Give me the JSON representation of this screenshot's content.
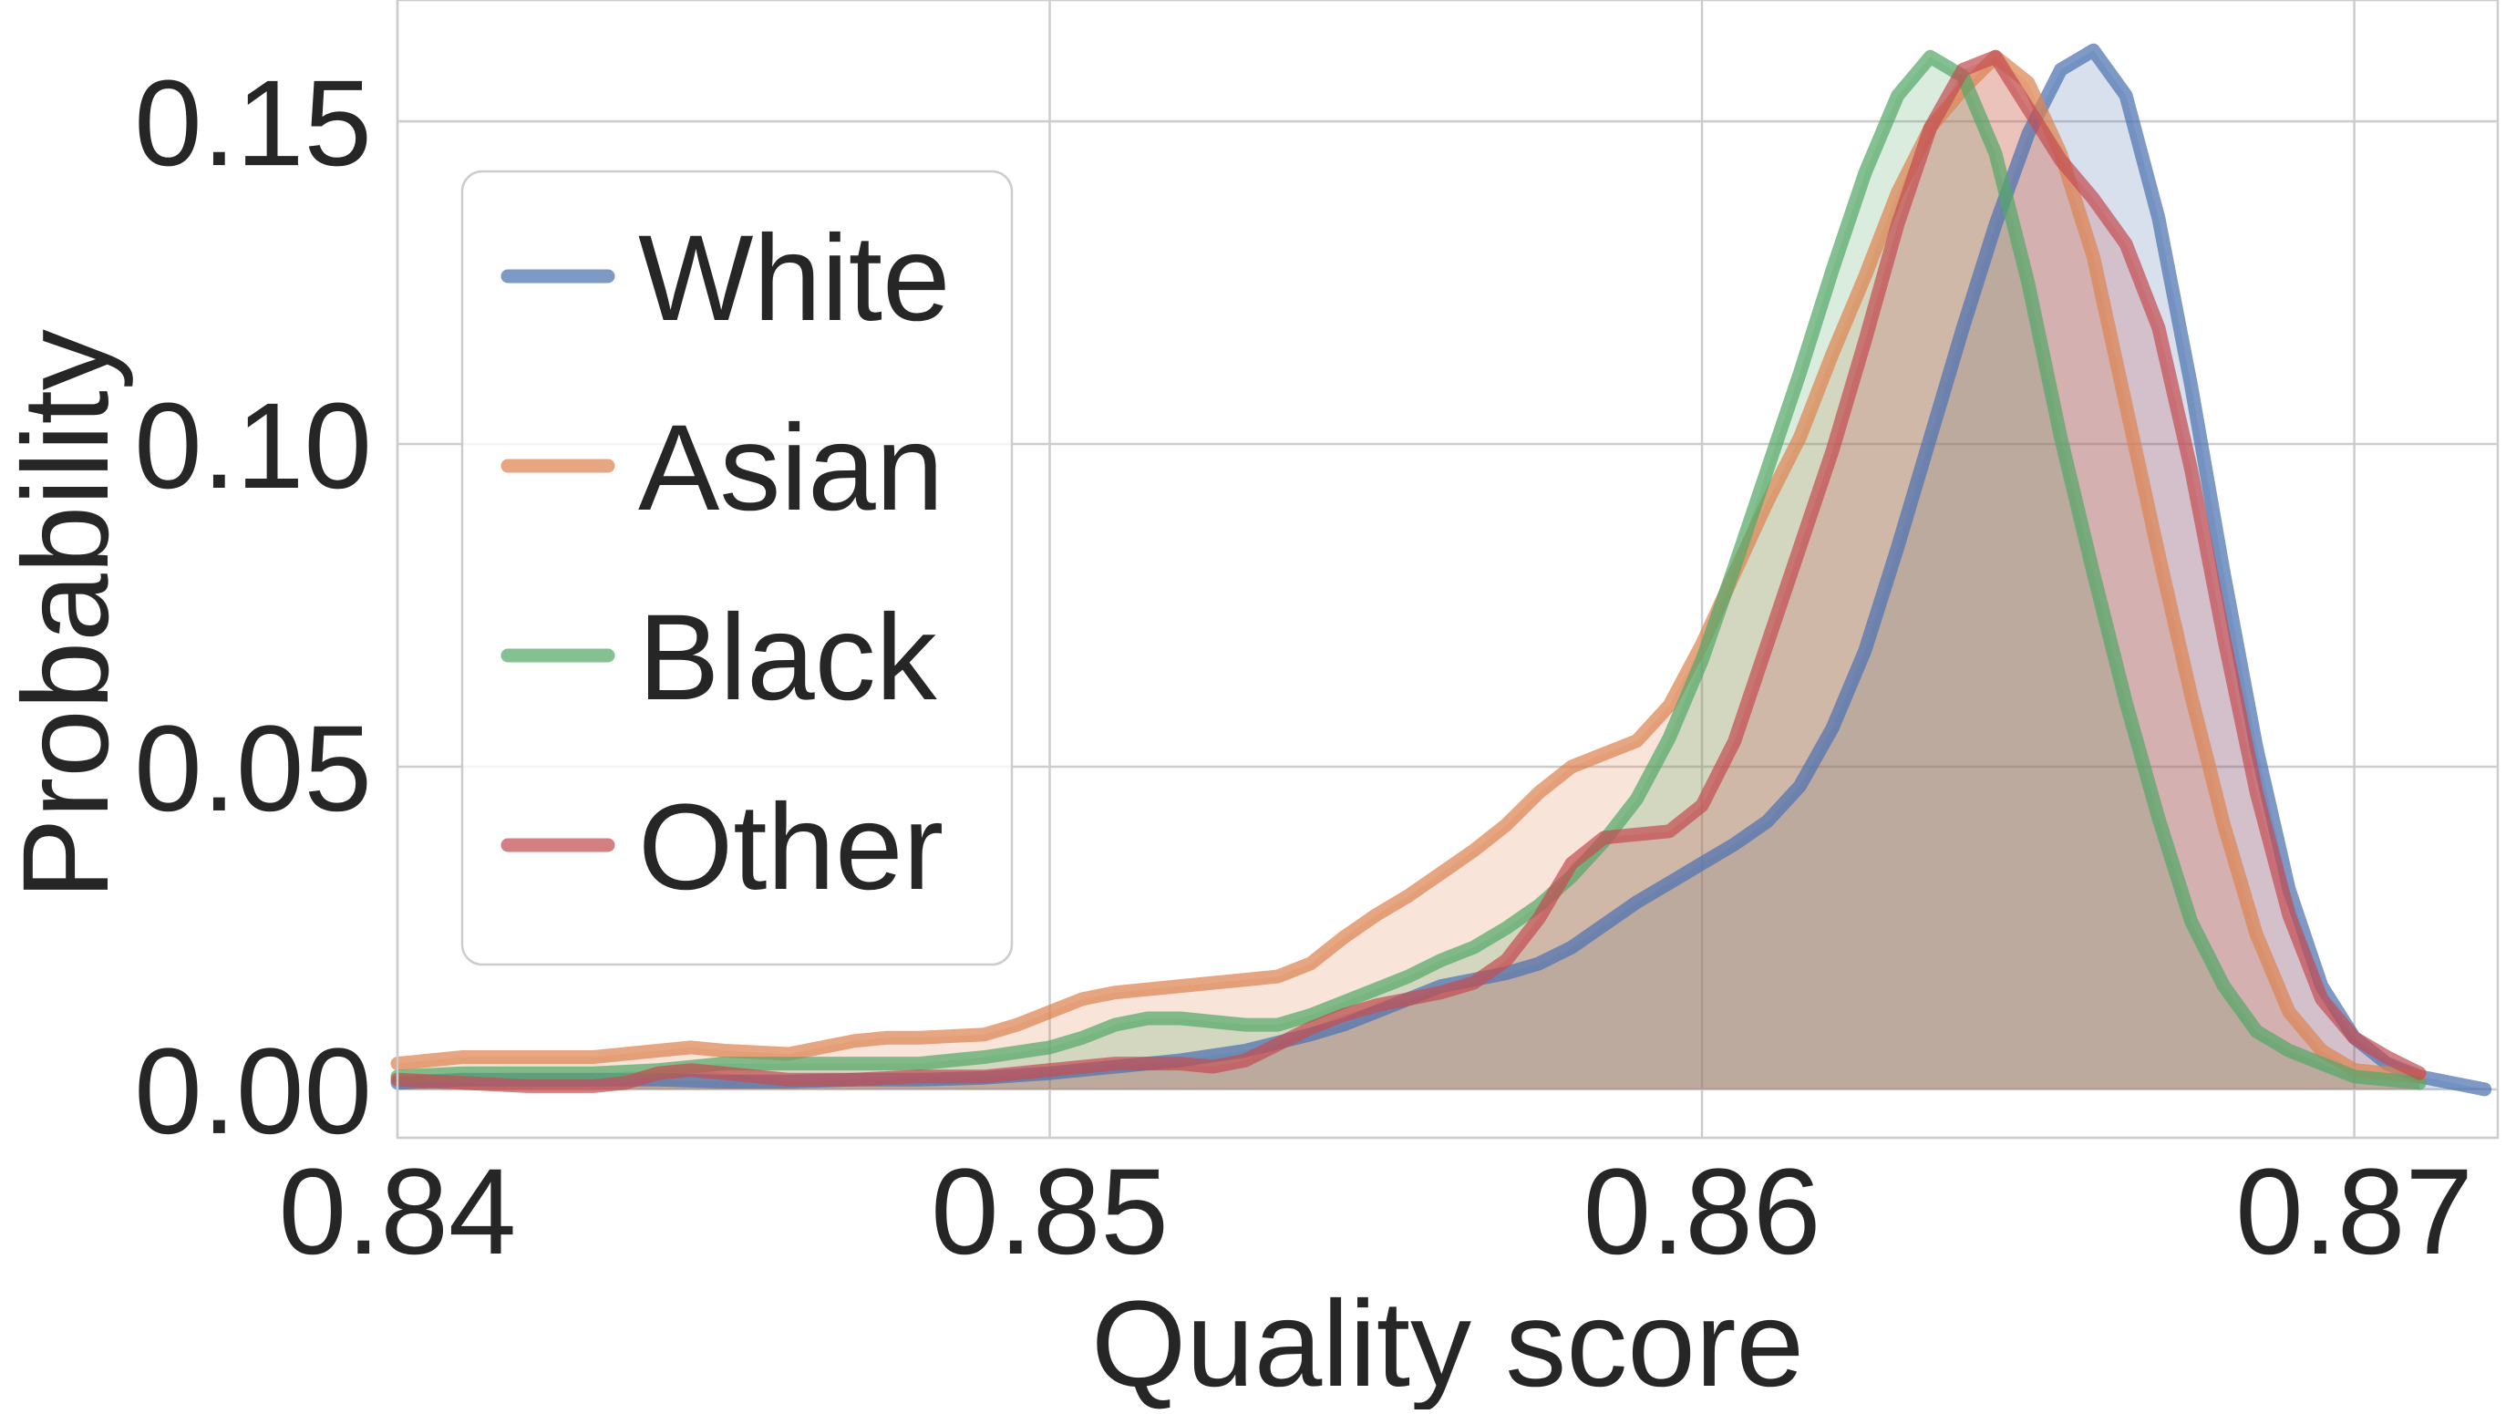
{
  "chart_data": {
    "type": "area",
    "title": "",
    "xlabel": "Quality score",
    "ylabel": "Probability",
    "xlim": [
      0.84,
      0.8722
    ],
    "ylim": [
      -0.0075,
      0.1688
    ],
    "xticks": [
      0.84,
      0.85,
      0.86,
      0.87
    ],
    "xtick_labels": [
      "0.84",
      "0.85",
      "0.86",
      "0.87"
    ],
    "yticks": [
      0.0,
      0.05,
      0.1,
      0.15
    ],
    "ytick_labels": [
      "0.00",
      "0.05",
      "0.10",
      "0.15"
    ],
    "grid": true,
    "legend": "upper-left",
    "series": [
      {
        "name": "White",
        "color": "#4c72b0",
        "points": [
          [
            0.84,
            0.001
          ],
          [
            0.841,
            0.0015
          ],
          [
            0.842,
            0.0015
          ],
          [
            0.843,
            0.0015
          ],
          [
            0.844,
            0.0015
          ],
          [
            0.845,
            0.0012
          ],
          [
            0.846,
            0.0012
          ],
          [
            0.847,
            0.0015
          ],
          [
            0.848,
            0.0015
          ],
          [
            0.849,
            0.0018
          ],
          [
            0.85,
            0.0025
          ],
          [
            0.851,
            0.0035
          ],
          [
            0.852,
            0.0045
          ],
          [
            0.853,
            0.006
          ],
          [
            0.854,
            0.0085
          ],
          [
            0.8545,
            0.01
          ],
          [
            0.855,
            0.012
          ],
          [
            0.8555,
            0.014
          ],
          [
            0.856,
            0.016
          ],
          [
            0.8565,
            0.017
          ],
          [
            0.857,
            0.018
          ],
          [
            0.8575,
            0.0195
          ],
          [
            0.858,
            0.022
          ],
          [
            0.8585,
            0.0255
          ],
          [
            0.859,
            0.029
          ],
          [
            0.8595,
            0.032
          ],
          [
            0.86,
            0.035
          ],
          [
            0.8605,
            0.038
          ],
          [
            0.861,
            0.0415
          ],
          [
            0.8615,
            0.047
          ],
          [
            0.862,
            0.056
          ],
          [
            0.8625,
            0.068
          ],
          [
            0.863,
            0.084
          ],
          [
            0.8635,
            0.101
          ],
          [
            0.864,
            0.118
          ],
          [
            0.8645,
            0.134
          ],
          [
            0.865,
            0.148
          ],
          [
            0.8655,
            0.158
          ],
          [
            0.866,
            0.161
          ],
          [
            0.8665,
            0.154
          ],
          [
            0.867,
            0.135
          ],
          [
            0.8675,
            0.109
          ],
          [
            0.868,
            0.08
          ],
          [
            0.8685,
            0.053
          ],
          [
            0.869,
            0.031
          ],
          [
            0.8695,
            0.016
          ],
          [
            0.87,
            0.008
          ],
          [
            0.8705,
            0.004
          ],
          [
            0.871,
            0.002
          ],
          [
            0.8715,
            0.001
          ],
          [
            0.872,
            0.0
          ]
        ]
      },
      {
        "name": "Asian",
        "color": "#dd8452",
        "points": [
          [
            0.84,
            0.004
          ],
          [
            0.841,
            0.005
          ],
          [
            0.842,
            0.005
          ],
          [
            0.843,
            0.005
          ],
          [
            0.844,
            0.006
          ],
          [
            0.8445,
            0.0065
          ],
          [
            0.845,
            0.006
          ],
          [
            0.846,
            0.0055
          ],
          [
            0.847,
            0.0075
          ],
          [
            0.8475,
            0.008
          ],
          [
            0.848,
            0.008
          ],
          [
            0.849,
            0.0085
          ],
          [
            0.8495,
            0.01
          ],
          [
            0.85,
            0.012
          ],
          [
            0.8505,
            0.014
          ],
          [
            0.851,
            0.015
          ],
          [
            0.852,
            0.016
          ],
          [
            0.853,
            0.017
          ],
          [
            0.8535,
            0.0175
          ],
          [
            0.854,
            0.0195
          ],
          [
            0.8545,
            0.0235
          ],
          [
            0.855,
            0.027
          ],
          [
            0.8555,
            0.03
          ],
          [
            0.856,
            0.0335
          ],
          [
            0.8565,
            0.037
          ],
          [
            0.857,
            0.041
          ],
          [
            0.8575,
            0.046
          ],
          [
            0.858,
            0.05
          ],
          [
            0.8585,
            0.052
          ],
          [
            0.859,
            0.054
          ],
          [
            0.8595,
            0.0595
          ],
          [
            0.86,
            0.069
          ],
          [
            0.8605,
            0.08
          ],
          [
            0.861,
            0.091
          ],
          [
            0.8615,
            0.101
          ],
          [
            0.862,
            0.114
          ],
          [
            0.8625,
            0.126
          ],
          [
            0.863,
            0.139
          ],
          [
            0.8635,
            0.149
          ],
          [
            0.864,
            0.155
          ],
          [
            0.8645,
            0.16
          ],
          [
            0.865,
            0.156
          ],
          [
            0.8655,
            0.145
          ],
          [
            0.866,
            0.129
          ],
          [
            0.8665,
            0.106
          ],
          [
            0.867,
            0.083
          ],
          [
            0.8675,
            0.061
          ],
          [
            0.868,
            0.041
          ],
          [
            0.8685,
            0.024
          ],
          [
            0.869,
            0.012
          ],
          [
            0.8695,
            0.006
          ],
          [
            0.87,
            0.003
          ],
          [
            0.871,
            0.002
          ]
        ]
      },
      {
        "name": "Black",
        "color": "#55a868",
        "points": [
          [
            0.84,
            0.002
          ],
          [
            0.841,
            0.0025
          ],
          [
            0.842,
            0.0025
          ],
          [
            0.843,
            0.0025
          ],
          [
            0.844,
            0.003
          ],
          [
            0.845,
            0.004
          ],
          [
            0.846,
            0.004
          ],
          [
            0.847,
            0.004
          ],
          [
            0.848,
            0.004
          ],
          [
            0.849,
            0.005
          ],
          [
            0.85,
            0.0065
          ],
          [
            0.8505,
            0.008
          ],
          [
            0.851,
            0.01
          ],
          [
            0.8515,
            0.011
          ],
          [
            0.852,
            0.011
          ],
          [
            0.8525,
            0.0105
          ],
          [
            0.853,
            0.01
          ],
          [
            0.8535,
            0.01
          ],
          [
            0.854,
            0.0115
          ],
          [
            0.8545,
            0.0135
          ],
          [
            0.855,
            0.0155
          ],
          [
            0.8555,
            0.0175
          ],
          [
            0.856,
            0.02
          ],
          [
            0.8565,
            0.022
          ],
          [
            0.857,
            0.025
          ],
          [
            0.8575,
            0.0285
          ],
          [
            0.858,
            0.033
          ],
          [
            0.8585,
            0.0385
          ],
          [
            0.859,
            0.045
          ],
          [
            0.8595,
            0.0545
          ],
          [
            0.86,
            0.0665
          ],
          [
            0.8605,
            0.081
          ],
          [
            0.861,
            0.096
          ],
          [
            0.8615,
            0.111
          ],
          [
            0.862,
            0.127
          ],
          [
            0.8625,
            0.142
          ],
          [
            0.863,
            0.154
          ],
          [
            0.8635,
            0.16
          ],
          [
            0.864,
            0.157
          ],
          [
            0.8645,
            0.145
          ],
          [
            0.865,
            0.125
          ],
          [
            0.8655,
            0.101
          ],
          [
            0.866,
            0.08
          ],
          [
            0.8665,
            0.06
          ],
          [
            0.867,
            0.042
          ],
          [
            0.8675,
            0.026
          ],
          [
            0.868,
            0.016
          ],
          [
            0.8685,
            0.009
          ],
          [
            0.869,
            0.006
          ],
          [
            0.8695,
            0.004
          ],
          [
            0.87,
            0.002
          ],
          [
            0.871,
            0.001
          ]
        ]
      },
      {
        "name": "Other",
        "color": "#c44e52",
        "points": [
          [
            0.84,
            0.0015
          ],
          [
            0.841,
            0.001
          ],
          [
            0.842,
            0.0005
          ],
          [
            0.843,
            0.0005
          ],
          [
            0.8435,
            0.001
          ],
          [
            0.844,
            0.0025
          ],
          [
            0.8445,
            0.003
          ],
          [
            0.845,
            0.0025
          ],
          [
            0.846,
            0.0015
          ],
          [
            0.847,
            0.0015
          ],
          [
            0.848,
            0.002
          ],
          [
            0.849,
            0.002
          ],
          [
            0.85,
            0.003
          ],
          [
            0.851,
            0.004
          ],
          [
            0.852,
            0.004
          ],
          [
            0.8525,
            0.0035
          ],
          [
            0.853,
            0.0045
          ],
          [
            0.8535,
            0.007
          ],
          [
            0.854,
            0.0095
          ],
          [
            0.8545,
            0.0115
          ],
          [
            0.855,
            0.013
          ],
          [
            0.8555,
            0.014
          ],
          [
            0.856,
            0.015
          ],
          [
            0.8565,
            0.0165
          ],
          [
            0.857,
            0.02
          ],
          [
            0.8575,
            0.0265
          ],
          [
            0.858,
            0.035
          ],
          [
            0.8585,
            0.039
          ],
          [
            0.859,
            0.0395
          ],
          [
            0.8595,
            0.04
          ],
          [
            0.86,
            0.044
          ],
          [
            0.8605,
            0.054
          ],
          [
            0.861,
            0.069
          ],
          [
            0.8615,
            0.084
          ],
          [
            0.862,
            0.099
          ],
          [
            0.8625,
            0.116
          ],
          [
            0.863,
            0.134
          ],
          [
            0.8635,
            0.149
          ],
          [
            0.864,
            0.158
          ],
          [
            0.8645,
            0.16
          ],
          [
            0.865,
            0.152
          ],
          [
            0.8655,
            0.144
          ],
          [
            0.866,
            0.138
          ],
          [
            0.8665,
            0.131
          ],
          [
            0.867,
            0.118
          ],
          [
            0.8675,
            0.096
          ],
          [
            0.868,
            0.07
          ],
          [
            0.8685,
            0.046
          ],
          [
            0.869,
            0.027
          ],
          [
            0.8695,
            0.014
          ],
          [
            0.87,
            0.008
          ],
          [
            0.8705,
            0.005
          ],
          [
            0.871,
            0.0025
          ]
        ]
      }
    ]
  }
}
